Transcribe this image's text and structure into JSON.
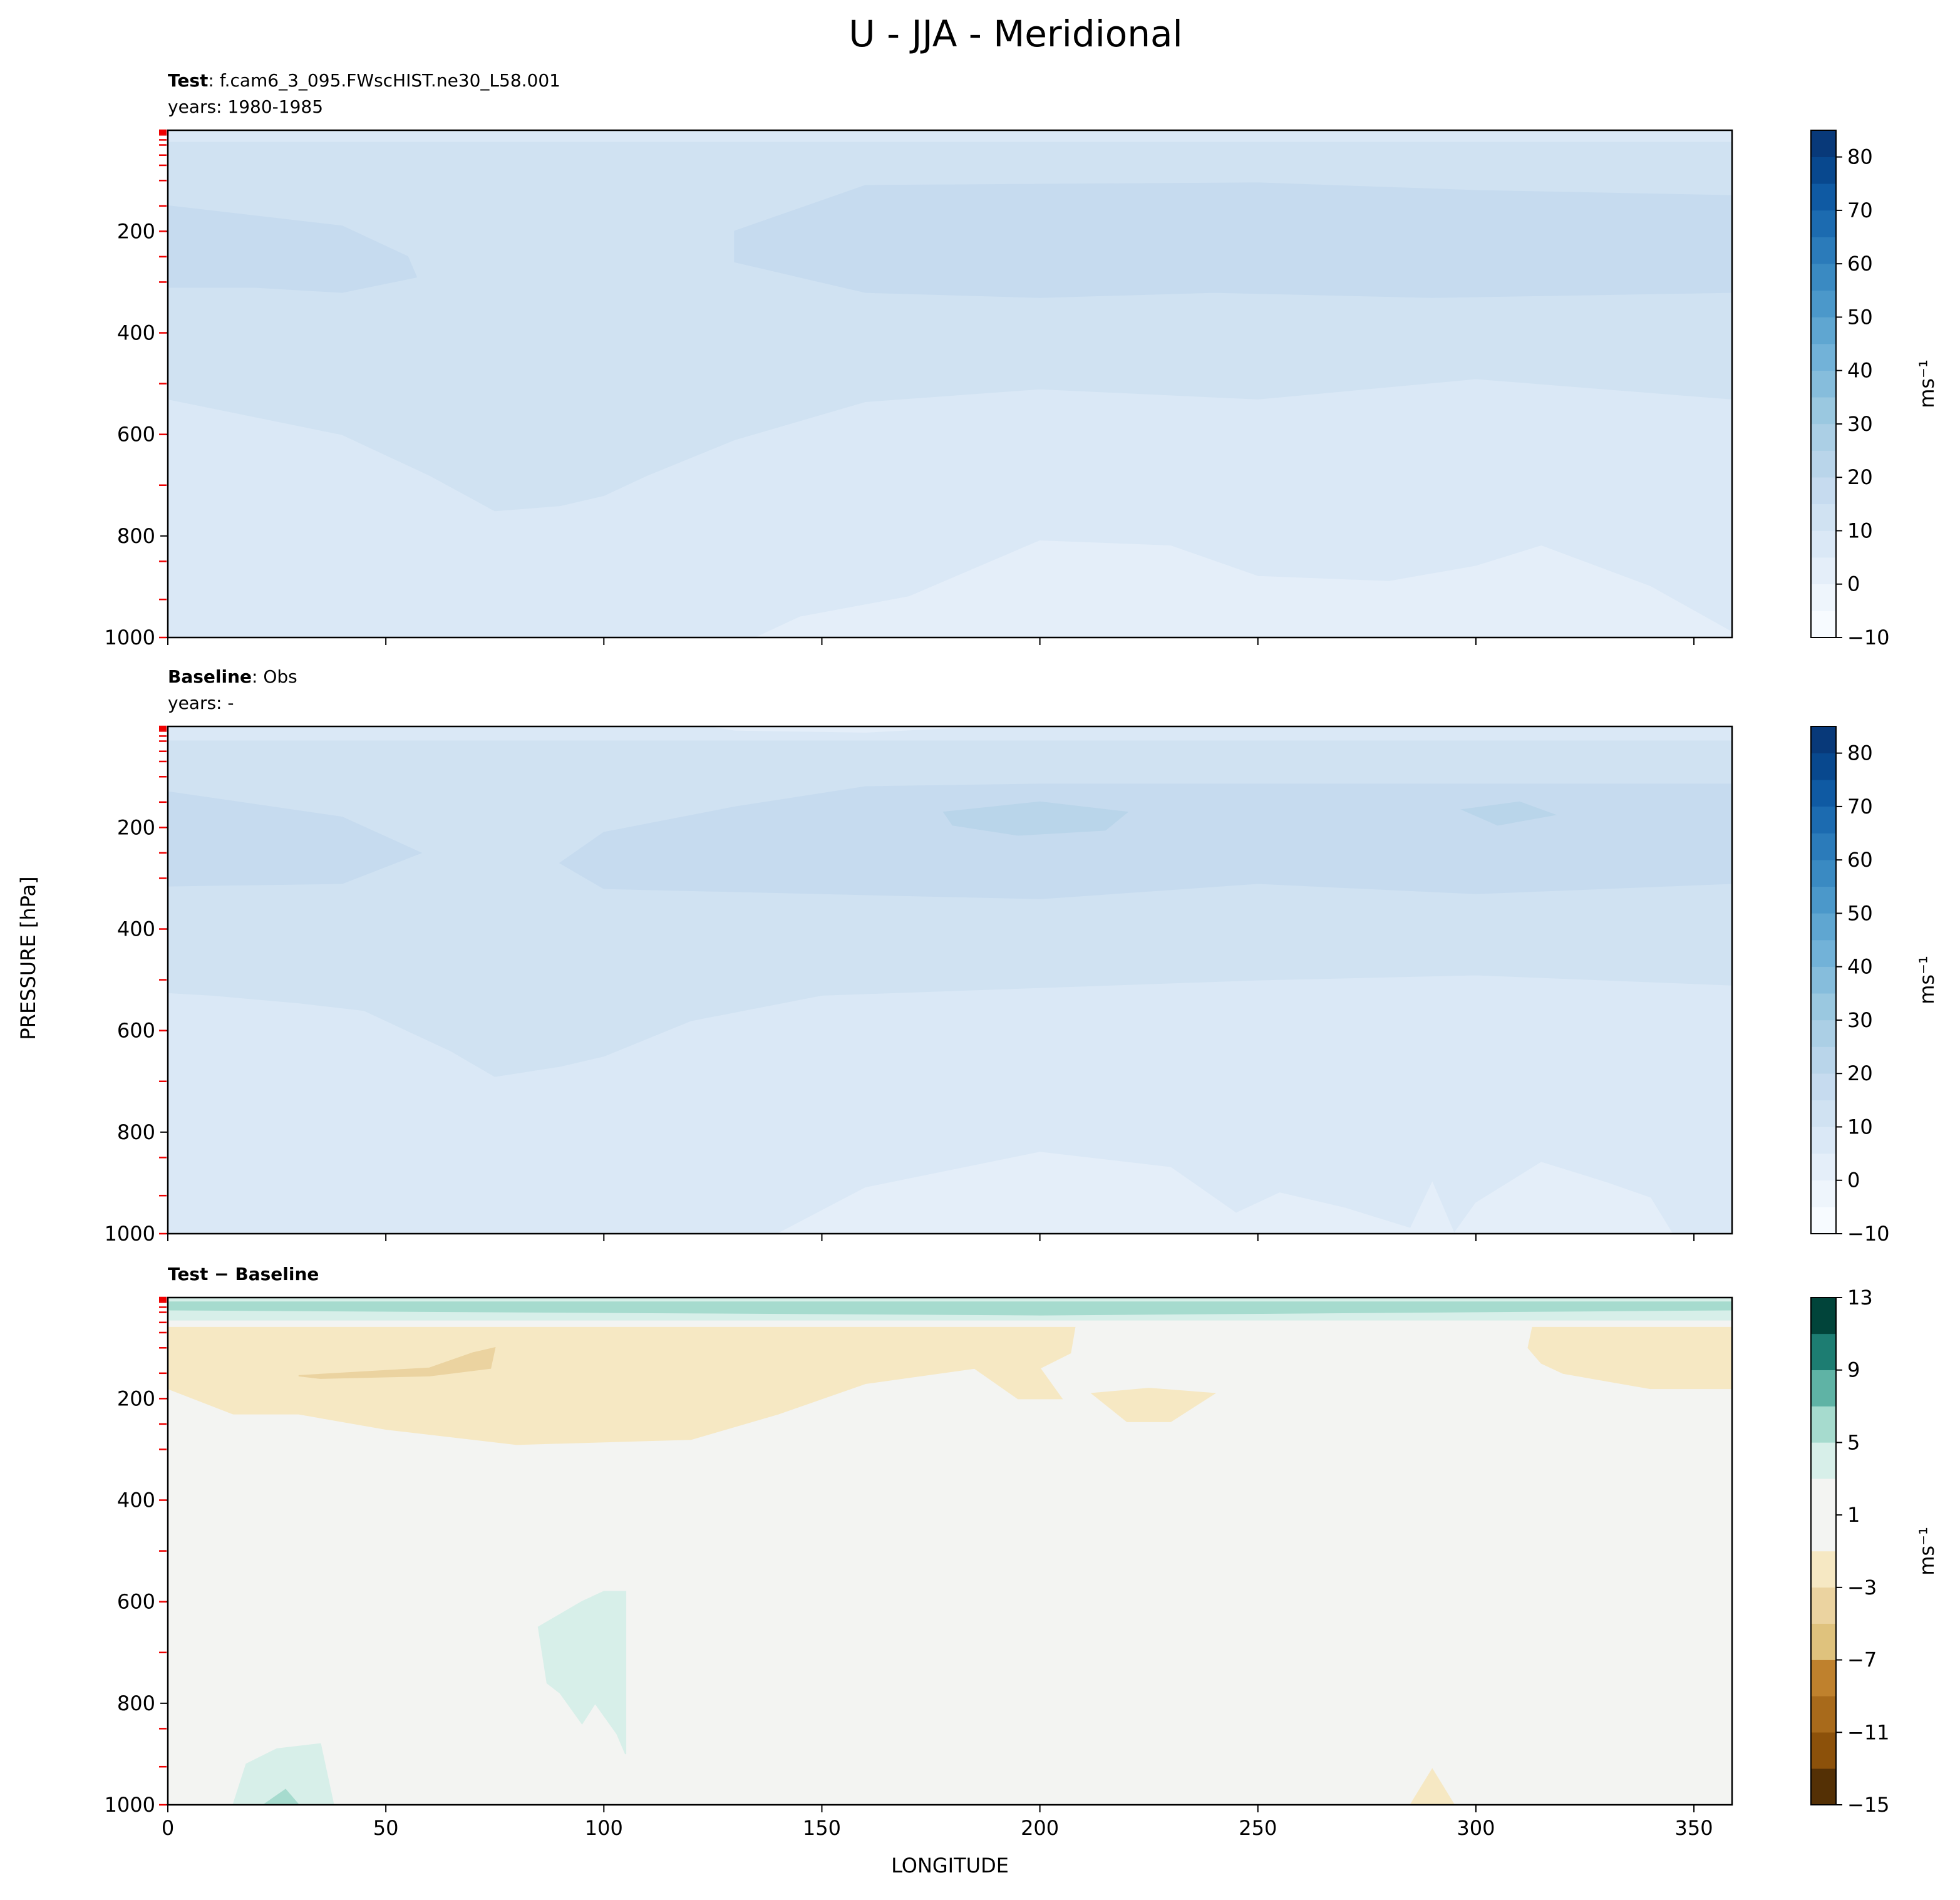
{
  "title": "U - JJA - Meridional",
  "ylabel": "PRESSURE [hPa]",
  "chart_data": [
    {
      "type": "contour",
      "title_bold": "Test",
      "title_rest": ": f.cam6_3_095.FWscHIST.ne30_L58.001",
      "subtitle": "years: 1980-1985",
      "xlim": [
        0,
        358.75
      ],
      "xticks": [
        0,
        50,
        100,
        150,
        200,
        250,
        300,
        350
      ],
      "show_xticklabels": false,
      "ylim": [
        1000,
        1
      ],
      "yticks": [
        200,
        400,
        600,
        800,
        1000
      ],
      "pressure_levels": [
        1,
        2,
        3,
        5,
        7,
        10,
        20,
        30,
        50,
        70,
        100,
        150,
        200,
        250,
        300,
        400,
        500,
        600,
        700,
        850,
        925,
        1000
      ],
      "levels": [
        -10,
        -5,
        0,
        5,
        10,
        15,
        20,
        25,
        30,
        35,
        40,
        45,
        50,
        55,
        60,
        65,
        70,
        75,
        80,
        85
      ],
      "colors": [
        "#f7fbff",
        "#eef5fc",
        "#e4eef9",
        "#dae8f6",
        "#d0e2f2",
        "#c6dbef",
        "#b9d5ea",
        "#abcfe5",
        "#9ac8e0",
        "#86bddc",
        "#72b2d8",
        "#5fa6d1",
        "#4b98ca",
        "#3a8ac2",
        "#2b7bba",
        "#1c6bb0",
        "#0f5aa3",
        "#08488e",
        "#083979"
      ],
      "cbar_ticks": [
        {
          "value": -10,
          "label": "−10"
        },
        0,
        10,
        20,
        30,
        40,
        50,
        60,
        70,
        80
      ],
      "cbar_label": "ms⁻¹",
      "base_level": 5,
      "regions": [
        {
          "level": 10,
          "x": [
            0,
            358.75,
            358.75,
            300,
            250,
            200,
            160,
            130,
            110,
            100,
            90,
            75,
            60,
            40,
            0
          ],
          "y": [
            25,
            25,
            530,
            490,
            530,
            510,
            535,
            610,
            680,
            720,
            740,
            750,
            680,
            600,
            530
          ]
        },
        {
          "level": 15,
          "x": [
            0,
            40,
            55,
            57,
            40,
            20,
            0
          ],
          "y": [
            150,
            190,
            250,
            290,
            320,
            310,
            310
          ]
        },
        {
          "level": 15,
          "x": [
            130,
            160,
            250,
            300,
            358.75,
            358.75,
            290,
            240,
            200,
            160,
            130
          ],
          "y": [
            200,
            110,
            105,
            120,
            130,
            320,
            330,
            320,
            330,
            320,
            260
          ]
        },
        {
          "level": 0,
          "x": [
            135,
            145,
            170,
            200,
            230,
            250,
            280,
            300,
            315,
            340,
            358.75,
            358.75
          ],
          "y": [
            1000,
            960,
            920,
            810,
            820,
            880,
            890,
            860,
            820,
            900,
            990,
            1000
          ]
        }
      ]
    },
    {
      "type": "contour",
      "title_bold": "Baseline",
      "title_rest": ": Obs",
      "subtitle": "years: -",
      "xlim": [
        0,
        358.75
      ],
      "xticks": [
        0,
        50,
        100,
        150,
        200,
        250,
        300,
        350
      ],
      "show_xticklabels": false,
      "ylim": [
        1000,
        1
      ],
      "yticks": [
        200,
        400,
        600,
        800,
        1000
      ],
      "pressure_levels": [
        1,
        2,
        3,
        5,
        7,
        10,
        20,
        30,
        50,
        70,
        100,
        150,
        200,
        250,
        300,
        400,
        500,
        600,
        700,
        850,
        925,
        1000
      ],
      "levels": [
        -10,
        -5,
        0,
        5,
        10,
        15,
        20,
        25,
        30,
        35,
        40,
        45,
        50,
        55,
        60,
        65,
        70,
        75,
        80,
        85
      ],
      "colors": [
        "#f7fbff",
        "#eef5fc",
        "#e4eef9",
        "#dae8f6",
        "#d0e2f2",
        "#c6dbef",
        "#b9d5ea",
        "#abcfe5",
        "#9ac8e0",
        "#86bddc",
        "#72b2d8",
        "#5fa6d1",
        "#4b98ca",
        "#3a8ac2",
        "#2b7bba",
        "#1c6bb0",
        "#0f5aa3",
        "#08488e",
        "#083979"
      ],
      "cbar_ticks": [
        {
          "value": -10,
          "label": "−10"
        },
        0,
        10,
        20,
        30,
        40,
        50,
        60,
        70,
        80
      ],
      "cbar_label": "ms⁻¹",
      "base_level": 5,
      "regions": [
        {
          "level": 10,
          "x": [
            0,
            358.75,
            358.75,
            300,
            250,
            200,
            150,
            120,
            100,
            90,
            75,
            65,
            45,
            30,
            10,
            0
          ],
          "y": [
            30,
            30,
            510,
            490,
            500,
            515,
            530,
            580,
            650,
            670,
            690,
            640,
            560,
            545,
            530,
            525
          ]
        },
        {
          "level": 15,
          "x": [
            0,
            40,
            58,
            40,
            0
          ],
          "y": [
            130,
            180,
            250,
            310,
            315
          ]
        },
        {
          "level": 15,
          "x": [
            90,
            100,
            130,
            160,
            200,
            260,
            300,
            358.75,
            358.75,
            300,
            250,
            200,
            150,
            100
          ],
          "y": [
            270,
            210,
            160,
            120,
            115,
            115,
            115,
            115,
            310,
            330,
            310,
            340,
            330,
            320
          ]
        },
        {
          "level": 20,
          "x": [
            178,
            200,
            220,
            215,
            195,
            180
          ],
          "y": [
            170,
            150,
            170,
            205,
            215,
            195
          ]
        },
        {
          "level": 20,
          "x": [
            297,
            310,
            318,
            305
          ],
          "y": [
            165,
            150,
            175,
            195
          ]
        },
        {
          "level": 0,
          "x": [
            125,
            150,
            185,
            160,
            130
          ],
          "y": [
            1,
            1,
            1,
            12,
            8
          ]
        },
        {
          "level": 0,
          "x": [
            140,
            160,
            200,
            230,
            245,
            255,
            270,
            285,
            290,
            295,
            300,
            315,
            330,
            340,
            345
          ],
          "y": [
            1000,
            910,
            840,
            870,
            960,
            920,
            950,
            990,
            900,
            1000,
            940,
            860,
            900,
            930,
            1000
          ]
        }
      ]
    },
    {
      "type": "contour",
      "title_bold": "Test − Baseline",
      "xlim": [
        0,
        358.75
      ],
      "xticks": [
        0,
        50,
        100,
        150,
        200,
        250,
        300,
        350
      ],
      "show_xticklabels": true,
      "xlabel": "LONGITUDE",
      "ylim": [
        1000,
        1
      ],
      "yticks": [
        200,
        400,
        600,
        800,
        1000
      ],
      "pressure_levels": [
        1,
        2,
        3,
        5,
        7,
        10,
        20,
        30,
        50,
        70,
        100,
        150,
        200,
        250,
        300,
        400,
        500,
        600,
        700,
        850,
        925,
        1000
      ],
      "levels": [
        -15,
        -13,
        -11,
        -9,
        -7,
        -5,
        -3,
        -1,
        1,
        3,
        5,
        7,
        9,
        11,
        13
      ],
      "colors": [
        "#543005",
        "#8c510a",
        "#a86a1b",
        "#bf812d",
        "#dfc27d",
        "#ebd3a0",
        "#f6e8c3",
        "#f3f4f2",
        "#f3f4f2",
        "#d7efe9",
        "#a6dbce",
        "#5fb3a5",
        "#1d7d72",
        "#01443a"
      ],
      "cbar_ticks": [
        {
          "value": -15,
          "label": "−15"
        },
        {
          "value": -11,
          "label": "−11"
        },
        {
          "value": -7,
          "label": "−7"
        },
        {
          "value": -3,
          "label": "−3"
        },
        1,
        5,
        9,
        13
      ],
      "cbar_label": "ms⁻¹",
      "base_level": -1,
      "regions": [
        {
          "level": 3,
          "x": [
            0,
            358.75,
            358.75,
            0
          ],
          "y": [
            1,
            1,
            45,
            45
          ]
        },
        {
          "level": 5,
          "x": [
            0,
            358.75,
            358.75,
            200,
            0
          ],
          "y": [
            10,
            10,
            25,
            35,
            25
          ]
        },
        {
          "level": -3,
          "x": [
            0,
            208,
            207,
            200,
            205,
            195,
            185,
            160,
            140,
            120,
            80,
            50,
            30,
            15,
            0
          ],
          "y": [
            60,
            60,
            110,
            140,
            200,
            200,
            140,
            170,
            230,
            280,
            290,
            260,
            230,
            230,
            180
          ]
        },
        {
          "level": -3,
          "x": [
            212,
            225,
            240,
            230,
            220
          ],
          "y": [
            190,
            180,
            190,
            245,
            245
          ]
        },
        {
          "level": -3,
          "x": [
            313,
            358.75,
            358.75,
            340,
            320,
            315,
            312
          ],
          "y": [
            60,
            60,
            180,
            180,
            150,
            130,
            100
          ]
        },
        {
          "level": -5,
          "x": [
            30,
            50,
            60,
            70,
            75,
            74,
            60,
            35
          ],
          "y": [
            155,
            145,
            140,
            110,
            100,
            140,
            155,
            160
          ]
        },
        {
          "level": 3,
          "x": [
            85,
            95,
            100,
            105,
            105,
            103,
            98,
            95,
            90,
            87
          ],
          "y": [
            650,
            600,
            580,
            580,
            900,
            860,
            800,
            840,
            780,
            760
          ]
        },
        {
          "level": 3,
          "x": [
            15,
            18,
            25,
            35,
            38
          ],
          "y": [
            1000,
            920,
            890,
            880,
            1000
          ]
        },
        {
          "level": 5,
          "x": [
            22,
            27,
            30
          ],
          "y": [
            1000,
            970,
            1000
          ]
        },
        {
          "level": -3,
          "x": [
            285,
            290,
            295
          ],
          "y": [
            1000,
            930,
            1000
          ]
        }
      ]
    }
  ]
}
